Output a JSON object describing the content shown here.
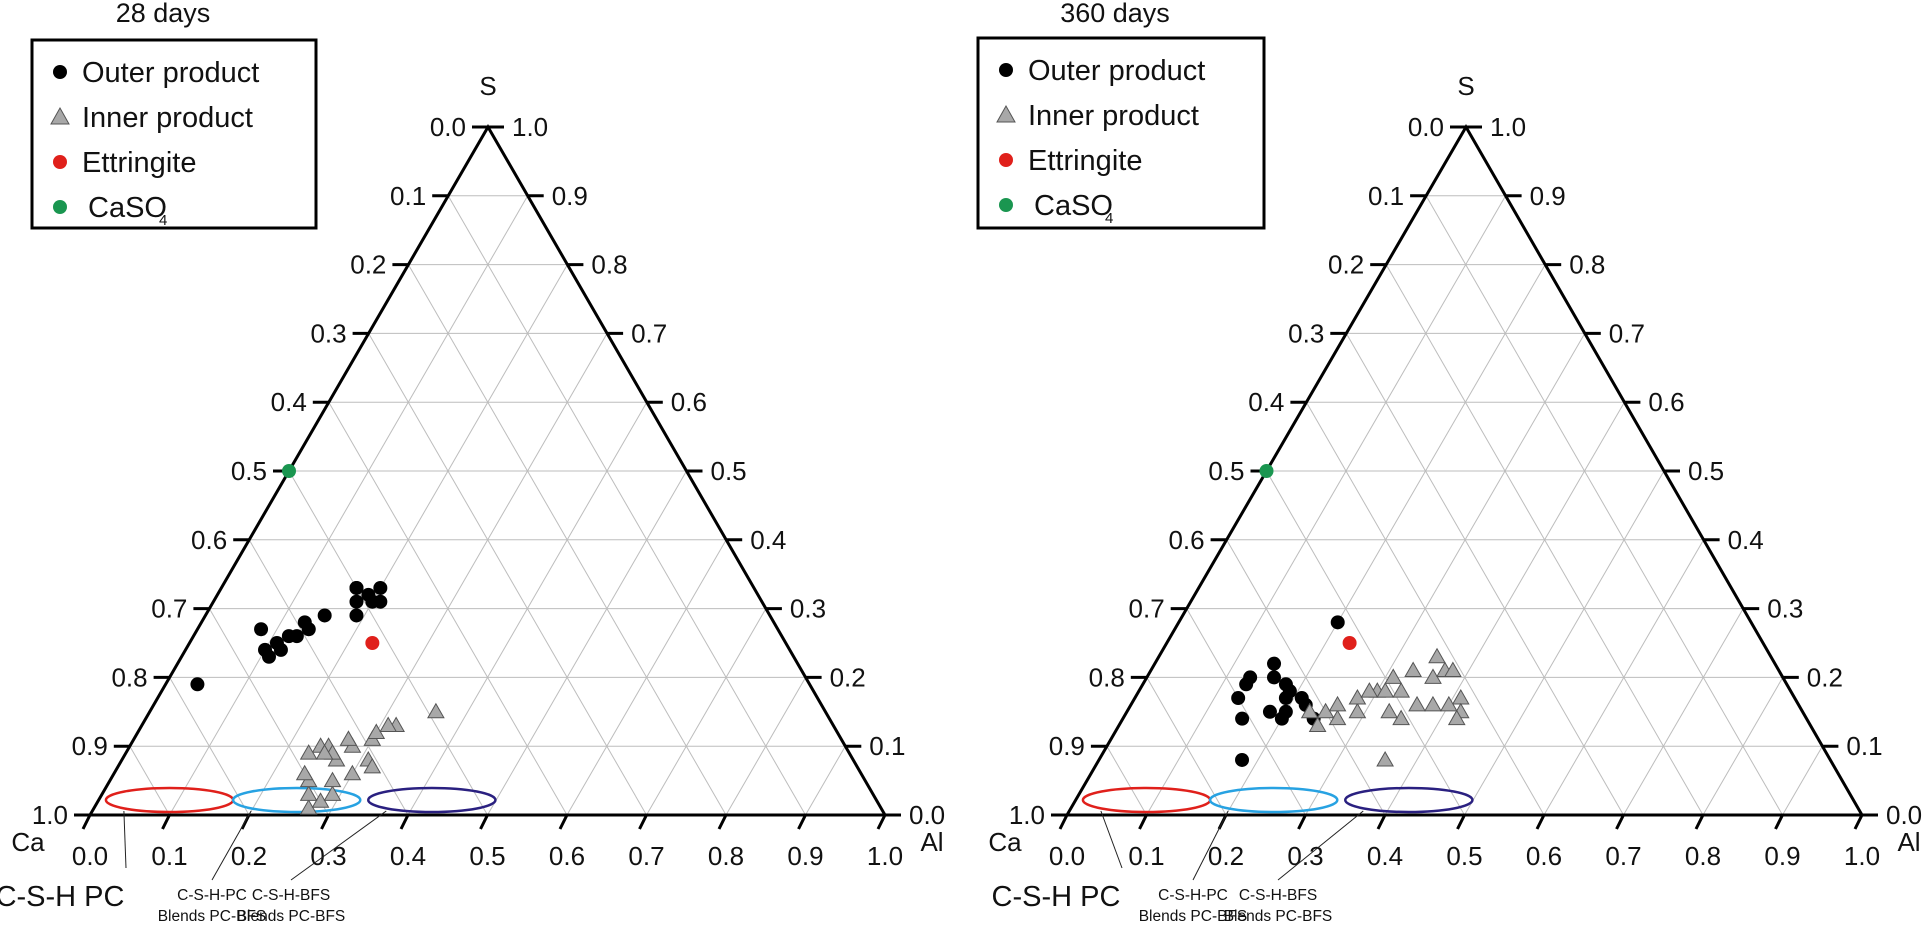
{
  "chart_data": [
    {
      "type": "scatter",
      "subtype": "ternary",
      "title": "28 days",
      "corners": {
        "top": "S",
        "left": "Ca",
        "right": "Al"
      },
      "ticks": [
        "0.0",
        "0.1",
        "0.2",
        "0.3",
        "0.4",
        "0.5",
        "0.6",
        "0.7",
        "0.8",
        "0.9",
        "1.0"
      ],
      "grid": true,
      "legend_position": "top-left",
      "legend": [
        {
          "label": "Outer product",
          "marker": "circle",
          "color": "#000000"
        },
        {
          "label": "Inner product",
          "marker": "triangle",
          "color": "#a8a8a8"
        },
        {
          "label": "Ettringite",
          "marker": "circle",
          "color": "#e0201b"
        },
        {
          "label": "CaSO",
          "subscript": "4",
          "marker": "circle",
          "color": "#1a9650"
        }
      ],
      "series": [
        {
          "name": "Outer product",
          "marker": "circle",
          "color": "#000000",
          "points": [
            [
              0.04,
              0.19
            ],
            [
              0.08,
              0.27
            ],
            [
              0.1,
              0.24
            ],
            [
              0.11,
              0.23
            ],
            [
              0.12,
              0.24
            ],
            [
              0.13,
              0.26
            ],
            [
              0.14,
              0.27
            ],
            [
              0.13,
              0.28
            ],
            [
              0.15,
              0.29
            ],
            [
              0.18,
              0.31
            ],
            [
              0.19,
              0.29
            ],
            [
              0.2,
              0.31
            ],
            [
              0.21,
              0.31
            ],
            [
              0.17,
              0.33
            ],
            [
              0.17,
              0.33
            ],
            [
              0.19,
              0.32
            ],
            [
              0.2,
              0.33
            ],
            [
              0.12,
              0.26
            ],
            [
              0.11,
              0.25
            ]
          ]
        },
        {
          "name": "Inner product",
          "marker": "triangle",
          "color": "#a8a8a8",
          "points": [
            [
              0.27,
              0.01
            ],
            [
              0.28,
              0.02
            ],
            [
              0.29,
              0.03
            ],
            [
              0.26,
              0.03
            ],
            [
              0.28,
              0.05
            ],
            [
              0.25,
              0.05
            ],
            [
              0.3,
              0.06
            ],
            [
              0.24,
              0.06
            ],
            [
              0.27,
              0.08
            ],
            [
              0.24,
              0.1
            ],
            [
              0.25,
              0.1
            ],
            [
              0.26,
              0.09
            ],
            [
              0.25,
              0.09
            ],
            [
              0.28,
              0.1
            ],
            [
              0.3,
              0.11
            ],
            [
              0.3,
              0.12
            ],
            [
              0.32,
              0.13
            ],
            [
              0.31,
              0.13
            ],
            [
              0.36,
              0.15
            ],
            [
              0.31,
              0.08
            ],
            [
              0.32,
              0.07
            ],
            [
              0.23,
              0.09
            ],
            [
              0.27,
              0.11
            ]
          ]
        },
        {
          "name": "Ettringite",
          "marker": "circle",
          "color": "#e0201b",
          "points": [
            [
              0.23,
              0.25
            ]
          ]
        },
        {
          "name": "CaSO4",
          "marker": "circle",
          "color": "#1a9650",
          "points": [
            [
              0.0,
              0.5
            ]
          ]
        }
      ],
      "regions": [
        {
          "name": "C-S-H PC",
          "color": "#e0201b",
          "al_range": [
            0.02,
            0.18
          ],
          "s": 0.0
        },
        {
          "name": "C-S-H-PC Blends PC-BFS",
          "color": "#27a2e2",
          "al_range": [
            0.18,
            0.34
          ],
          "s": 0.0
        },
        {
          "name": "C-S-H-BFS Blends PC-BFS",
          "color": "#2a2080",
          "al_range": [
            0.35,
            0.51
          ],
          "s": 0.0
        }
      ],
      "region_labels": [
        {
          "lines": [
            "C-S-H PC"
          ],
          "size": "big"
        },
        {
          "lines": [
            "C-S-H-PC",
            "Blends PC-BFS"
          ],
          "size": "small"
        },
        {
          "lines": [
            "C-S-H-BFS",
            "Blends PC-BFS"
          ],
          "size": "small"
        }
      ]
    },
    {
      "type": "scatter",
      "subtype": "ternary",
      "title": "360 days",
      "corners": {
        "top": "S",
        "left": "Ca",
        "right": "Al"
      },
      "ticks": [
        "0.0",
        "0.1",
        "0.2",
        "0.3",
        "0.4",
        "0.5",
        "0.6",
        "0.7",
        "0.8",
        "0.9",
        "1.0"
      ],
      "grid": true,
      "legend_position": "top-left",
      "legend": [
        {
          "label": "Outer product",
          "marker": "circle",
          "color": "#000000"
        },
        {
          "label": "Inner product",
          "marker": "triangle",
          "color": "#a8a8a8"
        },
        {
          "label": "Ettringite",
          "marker": "circle",
          "color": "#e0201b"
        },
        {
          "label": "CaSO",
          "subscript": "4",
          "marker": "circle",
          "color": "#1a9650"
        }
      ],
      "series": [
        {
          "name": "Outer product",
          "marker": "circle",
          "color": "#000000",
          "points": [
            [
              0.2,
              0.28
            ],
            [
              0.15,
              0.22
            ],
            [
              0.13,
              0.2
            ],
            [
              0.13,
              0.19
            ],
            [
              0.13,
              0.17
            ],
            [
              0.16,
              0.2
            ],
            [
              0.18,
              0.19
            ],
            [
              0.19,
              0.18
            ],
            [
              0.19,
              0.17
            ],
            [
              0.2,
              0.15
            ],
            [
              0.22,
              0.16
            ],
            [
              0.24,
              0.14
            ],
            [
              0.15,
              0.14
            ],
            [
              0.18,
              0.15
            ],
            [
              0.21,
              0.17
            ],
            [
              0.18,
              0.08
            ],
            [
              0.2,
              0.14
            ]
          ]
        },
        {
          "name": "Inner product",
          "marker": "triangle",
          "color": "#a8a8a8",
          "points": [
            [
              0.27,
              0.14
            ],
            [
              0.29,
              0.15
            ],
            [
              0.25,
              0.13
            ],
            [
              0.23,
              0.15
            ],
            [
              0.25,
              0.15
            ],
            [
              0.26,
              0.16
            ],
            [
              0.28,
              0.17
            ],
            [
              0.3,
              0.18
            ],
            [
              0.31,
              0.18
            ],
            [
              0.33,
              0.18
            ],
            [
              0.36,
              0.2
            ],
            [
              0.37,
              0.21
            ],
            [
              0.38,
              0.21
            ],
            [
              0.41,
              0.17
            ],
            [
              0.42,
              0.15
            ],
            [
              0.42,
              0.14
            ],
            [
              0.4,
              0.16
            ],
            [
              0.38,
              0.16
            ],
            [
              0.36,
              0.16
            ],
            [
              0.35,
              0.14
            ],
            [
              0.33,
              0.15
            ],
            [
              0.36,
              0.08
            ],
            [
              0.29,
              0.18
            ],
            [
              0.31,
              0.2
            ],
            [
              0.33,
              0.21
            ],
            [
              0.35,
              0.23
            ]
          ]
        },
        {
          "name": "Ettringite",
          "marker": "circle",
          "color": "#e0201b",
          "points": [
            [
              0.23,
              0.25
            ]
          ]
        },
        {
          "name": "CaSO4",
          "marker": "circle",
          "color": "#1a9650",
          "points": [
            [
              0.0,
              0.5
            ]
          ]
        }
      ],
      "regions": [
        {
          "name": "C-S-H PC",
          "color": "#e0201b",
          "al_range": [
            0.02,
            0.18
          ],
          "s": 0.0
        },
        {
          "name": "C-S-H-PC Blends PC-BFS",
          "color": "#27a2e2",
          "al_range": [
            0.18,
            0.34
          ],
          "s": 0.0
        },
        {
          "name": "C-S-H-BFS Blends PC-BFS",
          "color": "#2a2080",
          "al_range": [
            0.35,
            0.51
          ],
          "s": 0.0
        }
      ],
      "region_labels": [
        {
          "lines": [
            "C-S-H PC"
          ],
          "size": "big"
        },
        {
          "lines": [
            "C-S-H-PC",
            "Blends PC-BFS"
          ],
          "size": "small"
        },
        {
          "lines": [
            "C-S-H-BFS",
            "Blends PC-BFS"
          ],
          "size": "small"
        }
      ]
    }
  ]
}
